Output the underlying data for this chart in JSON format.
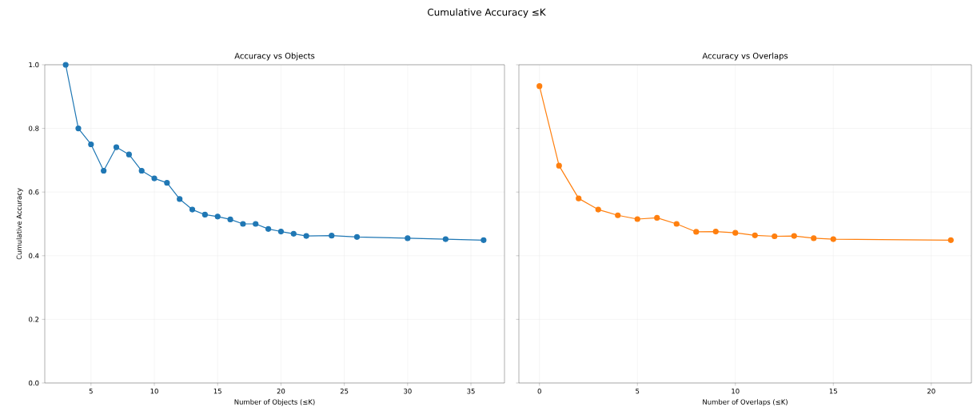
{
  "chart_data": [
    {
      "type": "line",
      "title": "Accuracy vs Objects",
      "xlabel": "Number of Objects (≤K)",
      "ylabel": "Cumulative Accuracy",
      "annotations": [
        "Cumulative Accuracy ≤K"
      ],
      "x": [
        3,
        4,
        5,
        6,
        7,
        8,
        9,
        10,
        11,
        12,
        13,
        14,
        15,
        16,
        17,
        18,
        19,
        20,
        21,
        22,
        24,
        26,
        30,
        33,
        36
      ],
      "series": [
        {
          "color": "#1f77b4",
          "values": [
            1.0,
            0.8,
            0.75,
            0.667,
            0.741,
            0.718,
            0.667,
            0.643,
            0.629,
            0.578,
            0.545,
            0.529,
            0.523,
            0.514,
            0.5,
            0.5,
            0.484,
            0.476,
            0.469,
            0.462,
            0.463,
            0.459,
            0.455,
            0.452,
            0.449
          ]
        }
      ],
      "xlim": [
        1.35,
        37.65
      ],
      "ylim": [
        0,
        1
      ],
      "xticks": [
        5,
        10,
        15,
        20,
        25,
        30,
        35
      ],
      "yticks": [
        {
          "value": 0,
          "label": "0.0"
        },
        0.2,
        0.4,
        0.6,
        0.8,
        {
          "value": 1,
          "label": "1.0"
        }
      ],
      "grid": true,
      "marker": "circle",
      "line_style": "solid"
    },
    {
      "type": "line",
      "title": "Accuracy vs Overlaps",
      "xlabel": "Number of Overlaps (≤K)",
      "x": [
        0,
        1,
        2,
        3,
        4,
        5,
        6,
        7,
        8,
        9,
        10,
        11,
        12,
        13,
        14,
        15,
        21
      ],
      "series": [
        {
          "color": "#ff7f0e",
          "values": [
            0.933,
            0.683,
            0.58,
            0.545,
            0.527,
            0.515,
            0.519,
            0.5,
            0.475,
            0.476,
            0.472,
            0.464,
            0.461,
            0.462,
            0.455,
            0.452,
            0.449
          ]
        }
      ],
      "xlim": [
        -1.05,
        22.05
      ],
      "ylim": [
        0,
        1
      ],
      "xticks": [
        0,
        5,
        10,
        15,
        20
      ],
      "yticks": [
        0,
        0.2,
        0.4,
        0.6,
        0.8,
        1
      ],
      "grid": true,
      "marker": "circle",
      "line_style": "solid",
      "tick_labels": "x"
    }
  ]
}
